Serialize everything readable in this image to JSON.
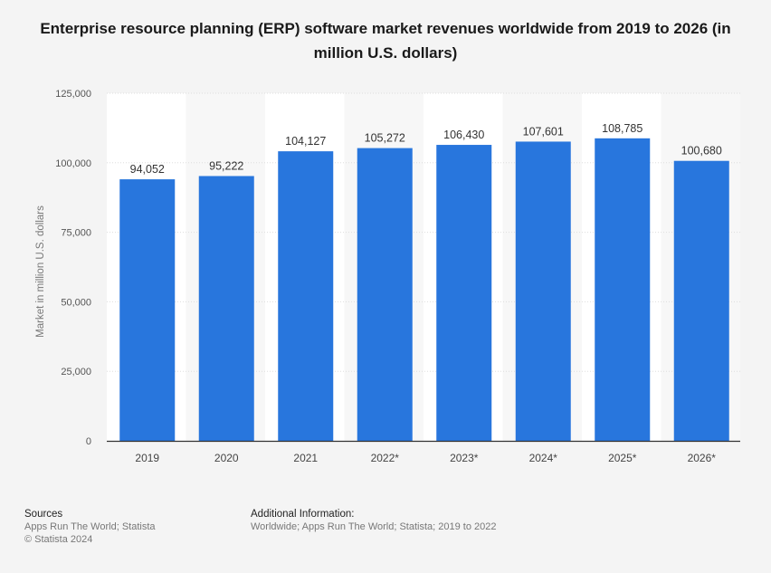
{
  "title": "Enterprise resource planning (ERP) software market revenues worldwide from 2019 to 2026 (in million U.S. dollars)",
  "chart_data": {
    "type": "bar",
    "title": "Enterprise resource planning (ERP) software market revenues worldwide from 2019 to 2026 (in million U.S. dollars)",
    "xlabel": "",
    "ylabel": "Market in million U.S. dollars",
    "categories": [
      "2019",
      "2020",
      "2021",
      "2022*",
      "2023*",
      "2024*",
      "2025*",
      "2026*"
    ],
    "values": [
      94052,
      95222,
      104127,
      105272,
      106430,
      107601,
      108785,
      100680
    ],
    "value_labels": [
      "94,052",
      "95,222",
      "104,127",
      "105,272",
      "106,430",
      "107,601",
      "108,785",
      "100,680"
    ],
    "ylim": [
      0,
      125000
    ],
    "yticks": [
      0,
      25000,
      50000,
      75000,
      100000,
      125000
    ],
    "ytick_labels": [
      "0",
      "25,000",
      "50,000",
      "75,000",
      "100,000",
      "125,000"
    ],
    "bar_color": "#2876dd",
    "grid": true,
    "legend": "none"
  },
  "footer": {
    "sources_heading": "Sources",
    "sources_line1": "Apps Run The World; Statista",
    "sources_line2": "© Statista 2024",
    "additional_heading": "Additional Information:",
    "additional_text": "Worldwide; Apps Run The World; Statista; 2019 to 2022"
  }
}
